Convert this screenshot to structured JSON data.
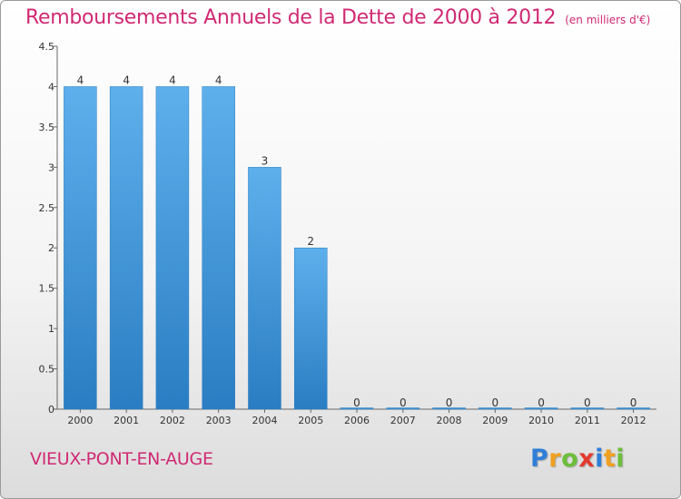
{
  "header": {
    "title": "Remboursements Annuels de la Dette de 2000 à 2012",
    "unit": "(en milliers d'€)"
  },
  "footer": {
    "town": "VIEUX-PONT-EN-AUGE",
    "logo": {
      "text": "Proxiti",
      "letters": [
        {
          "ch": "P",
          "color": "#2f7fd8"
        },
        {
          "ch": "r",
          "color": "#f0a020"
        },
        {
          "ch": "o",
          "color": "#6cbe3a"
        },
        {
          "ch": "x",
          "color": "#e23b2e"
        },
        {
          "ch": "i",
          "color": "#2f7fd8"
        },
        {
          "ch": "t",
          "color": "#f0a020"
        },
        {
          "ch": "i",
          "color": "#6cbe3a"
        }
      ]
    }
  },
  "chart_data": {
    "type": "bar",
    "title": "Remboursements Annuels de la Dette de 2000 à 2012",
    "subtitle": "(en milliers d'€)",
    "categories": [
      "2000",
      "2001",
      "2002",
      "2003",
      "2004",
      "2005",
      "2006",
      "2007",
      "2008",
      "2009",
      "2010",
      "2011",
      "2012"
    ],
    "values": [
      4,
      4,
      4,
      4,
      3,
      2,
      0,
      0,
      0,
      0,
      0,
      0,
      0
    ],
    "data_labels": [
      "4",
      "4",
      "4",
      "4",
      "3",
      "2",
      "0",
      "0",
      "0",
      "0",
      "0",
      "0",
      "0"
    ],
    "ylim": [
      0,
      4.5
    ],
    "yticks": [
      0,
      0.5,
      1,
      1.5,
      2,
      2.5,
      3,
      3.5,
      4,
      4.5
    ],
    "ytick_labels": [
      "0",
      "0.5",
      "1",
      "1.5",
      "2",
      "2.5",
      "3",
      "3.5",
      "4",
      "4.5"
    ],
    "grid": false,
    "bar_color": "#3a8fd6"
  }
}
